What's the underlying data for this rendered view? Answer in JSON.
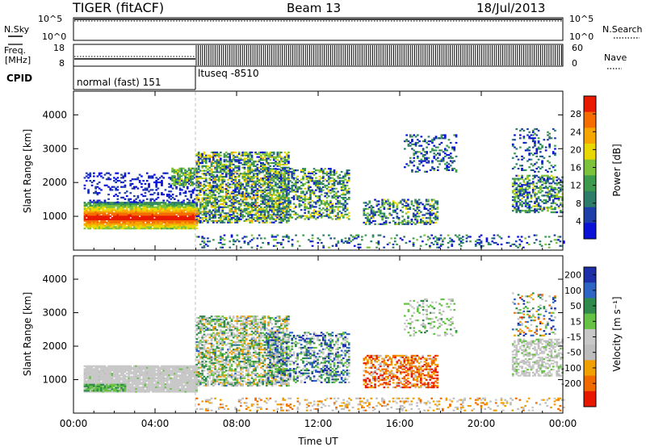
{
  "header": {
    "station": "TIGER (fitACF)",
    "beam": "Beam 13",
    "date": "18/Jul/2013"
  },
  "summary_panels": {
    "nsky": {
      "label": "N.Sky",
      "ticks": [
        "10^5",
        "10^0"
      ]
    },
    "nsearch": {
      "label": "N.Search",
      "ticks": [
        "10^5",
        "10^0"
      ]
    },
    "freq": {
      "label_line1": "Freq.",
      "label_line2": "[MHz]",
      "ticks": [
        "18",
        "8"
      ],
      "level_mhz": 11
    },
    "nave": {
      "label": "Nave",
      "ticks": [
        "60",
        "0"
      ]
    },
    "cpid": {
      "label": "CPID",
      "segments": [
        "normal (fast) 151",
        "ltuseq -8510"
      ],
      "switch_time": "06:00"
    }
  },
  "colors": {
    "power": [
      "#0a12d8",
      "#1f3fa8",
      "#2e7d6a",
      "#3c9b4c",
      "#7cc23a",
      "#e9d800",
      "#f7a500",
      "#f56c00",
      "#e81a00"
    ],
    "velocity": [
      "#1d2fa8",
      "#2e64c4",
      "#2f8a4c",
      "#66c244",
      "#c8c8c8",
      "#bdbdbd",
      "#f0a000",
      "#f06a00",
      "#e81800"
    ]
  },
  "chart_data": [
    {
      "type": "heatmap",
      "title": "Power",
      "ylabel": "Slant Range [km]",
      "xlabel": "",
      "x_ticks": [
        "00:00",
        "04:00",
        "08:00",
        "12:00",
        "16:00",
        "20:00",
        "00:00"
      ],
      "y_ticks": [
        1000,
        2000,
        3000,
        4000
      ],
      "ylim": [
        0,
        4700
      ],
      "xlim_hours": [
        0,
        24
      ],
      "colorbar": {
        "label": "Power [dB]",
        "ticks": [
          4,
          8,
          12,
          16,
          20,
          24,
          28
        ],
        "range": [
          0,
          32
        ]
      },
      "regions": [
        {
          "t0": 0.5,
          "t1": 6.0,
          "r0": 620,
          "r1": 1420,
          "density": 0.95,
          "cmin": 0.35,
          "cmax": 1.0,
          "edge": "low"
        },
        {
          "t0": 0.5,
          "t1": 6.0,
          "r0": 1400,
          "r1": 2300,
          "density": 0.25,
          "cmin": 0.0,
          "cmax": 0.2
        },
        {
          "t0": 4.8,
          "t1": 6.0,
          "r0": 1900,
          "r1": 2400,
          "density": 0.6,
          "cmin": 0.3,
          "cmax": 0.6
        },
        {
          "t0": 6.0,
          "t1": 10.5,
          "r0": 800,
          "r1": 2900,
          "density": 0.6,
          "cmin": 0.05,
          "cmax": 0.7
        },
        {
          "t0": 9.5,
          "t1": 13.5,
          "r0": 900,
          "r1": 2400,
          "density": 0.45,
          "cmin": 0.05,
          "cmax": 0.65
        },
        {
          "t0": 14.2,
          "t1": 17.8,
          "r0": 750,
          "r1": 1500,
          "density": 0.45,
          "cmin": 0.05,
          "cmax": 0.6
        },
        {
          "t0": 16.2,
          "t1": 18.8,
          "r0": 2300,
          "r1": 3400,
          "density": 0.25,
          "cmin": 0.0,
          "cmax": 0.45
        },
        {
          "t0": 21.5,
          "t1": 24.0,
          "r0": 1100,
          "r1": 2200,
          "density": 0.5,
          "cmin": 0.05,
          "cmax": 0.6
        },
        {
          "t0": 21.5,
          "t1": 23.6,
          "r0": 2300,
          "r1": 3600,
          "density": 0.2,
          "cmin": 0.0,
          "cmax": 0.4
        },
        {
          "t0": 6.0,
          "t1": 24.0,
          "r0": 60,
          "r1": 450,
          "density": 0.18,
          "cmin": 0.0,
          "cmax": 0.5
        }
      ]
    },
    {
      "type": "heatmap",
      "title": "Velocity",
      "ylabel": "Slant Range [km]",
      "xlabel": "Time UT",
      "x_ticks": [
        "00:00",
        "04:00",
        "08:00",
        "12:00",
        "16:00",
        "20:00",
        "00:00"
      ],
      "y_ticks": [
        1000,
        2000,
        3000,
        4000
      ],
      "ylim": [
        0,
        4700
      ],
      "xlim_hours": [
        0,
        24
      ],
      "colorbar": {
        "label": "Velocity [m s⁻¹]",
        "ticks": [
          200,
          100,
          50,
          15,
          -15,
          -50,
          -100,
          -200
        ],
        "range": [
          -250,
          250
        ]
      },
      "regions": [
        {
          "t0": 0.5,
          "t1": 6.0,
          "r0": 620,
          "r1": 1420,
          "density": 0.95,
          "cmin": 0.44,
          "cmax": 0.56
        },
        {
          "t0": 0.5,
          "t1": 2.5,
          "r0": 650,
          "r1": 850,
          "density": 0.8,
          "cmin": 0.3,
          "cmax": 0.4
        },
        {
          "t0": 6.0,
          "t1": 10.5,
          "r0": 800,
          "r1": 2900,
          "density": 0.6,
          "cmin": 0.2,
          "cmax": 0.75
        },
        {
          "t0": 9.5,
          "t1": 13.5,
          "r0": 900,
          "r1": 2400,
          "density": 0.45,
          "cmin": 0.0,
          "cmax": 0.6
        },
        {
          "t0": 14.2,
          "t1": 17.8,
          "r0": 750,
          "r1": 1700,
          "density": 0.5,
          "cmin": 0.6,
          "cmax": 1.0
        },
        {
          "t0": 16.2,
          "t1": 18.8,
          "r0": 2300,
          "r1": 3400,
          "density": 0.2,
          "cmin": 0.3,
          "cmax": 0.6
        },
        {
          "t0": 21.5,
          "t1": 24.0,
          "r0": 1100,
          "r1": 2200,
          "density": 0.5,
          "cmin": 0.4,
          "cmax": 0.65
        },
        {
          "t0": 21.5,
          "t1": 23.6,
          "r0": 2300,
          "r1": 3600,
          "density": 0.2,
          "cmin": 0.0,
          "cmax": 0.9
        },
        {
          "t0": 6.0,
          "t1": 24.0,
          "r0": 60,
          "r1": 450,
          "density": 0.2,
          "cmin": 0.5,
          "cmax": 0.85
        }
      ]
    }
  ]
}
